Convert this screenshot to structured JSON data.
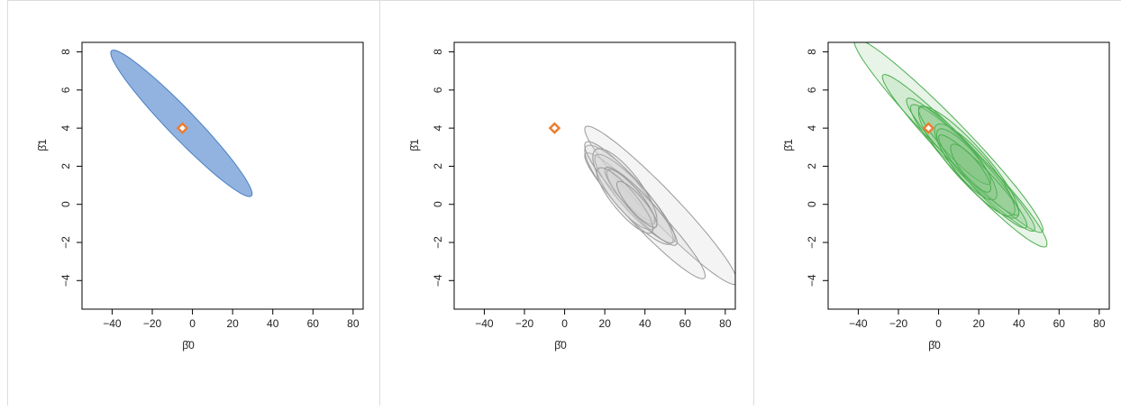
{
  "marker_color": "#ed7d31",
  "chart_data": [
    {
      "type": "scatter",
      "panel": "panel-1",
      "xlabel": "β̂0",
      "ylabel": "β̂1",
      "xlim": [
        -55,
        85
      ],
      "ylim": [
        -5.5,
        8.5
      ],
      "xticks": [
        -40,
        -20,
        0,
        20,
        40,
        60,
        80
      ],
      "yticks": [
        -4,
        -2,
        0,
        2,
        4,
        6,
        8
      ],
      "true_point": {
        "x": -5,
        "y": 4
      },
      "ellipse_color": "#4a7fc1",
      "ellipse_fill": "#7fa6d9",
      "ellipse_fill_opacity": 0.85,
      "ellipses": [
        {
          "cx": -5.5,
          "cy": 4.25,
          "a": 35.2,
          "b": 1.05,
          "angle": -5.54
        }
      ]
    },
    {
      "type": "scatter",
      "panel": "panel-2",
      "xlabel": "β̂0",
      "ylabel": "β̂1",
      "xlim": [
        -55,
        85
      ],
      "ylim": [
        -5.5,
        8.5
      ],
      "xticks": [
        -40,
        -20,
        0,
        20,
        40,
        60,
        80
      ],
      "yticks": [
        -4,
        -2,
        0,
        2,
        4,
        6,
        8
      ],
      "true_point": {
        "x": -5,
        "y": 4
      },
      "ellipse_color": "#999999",
      "ellipse_fill": "#d4d4d4",
      "ellipse_fill_opacity": 0.25,
      "ellipses": [
        {
          "cx": 48,
          "cy": -0.05,
          "a": 38,
          "b": 1.15,
          "angle": -5.2
        },
        {
          "cx": 40,
          "cy": -0.6,
          "a": 30,
          "b": 1.0,
          "angle": -4.9
        },
        {
          "cx": 32,
          "cy": 0.5,
          "a": 22,
          "b": 1.2,
          "angle": -5.0
        },
        {
          "cx": 28,
          "cy": 1.2,
          "a": 18,
          "b": 0.9,
          "angle": -4.5
        },
        {
          "cx": 35,
          "cy": 0.3,
          "a": 20,
          "b": 1.0,
          "angle": -5.5
        },
        {
          "cx": 30,
          "cy": 0.8,
          "a": 16,
          "b": 1.3,
          "angle": -4.7
        },
        {
          "cx": 38,
          "cy": -0.1,
          "a": 18,
          "b": 0.8,
          "angle": -5.3
        },
        {
          "cx": 33,
          "cy": 0.4,
          "a": 12,
          "b": 0.7,
          "angle": -5.0
        },
        {
          "cx": 30,
          "cy": 0.2,
          "a": 14,
          "b": 0.9,
          "angle": -5.6
        },
        {
          "cx": 36,
          "cy": 0.0,
          "a": 10,
          "b": 0.6,
          "angle": -4.8
        }
      ]
    },
    {
      "type": "scatter",
      "panel": "panel-3",
      "xlabel": "β̂0",
      "ylabel": "β̂1",
      "xlim": [
        -55,
        85
      ],
      "ylim": [
        -5.5,
        8.5
      ],
      "xticks": [
        -40,
        -20,
        0,
        20,
        40,
        60,
        80
      ],
      "yticks": [
        -4,
        -2,
        0,
        2,
        4,
        6,
        8
      ],
      "true_point": {
        "x": -5,
        "y": 4
      },
      "ellipse_color": "#4caf50",
      "ellipse_fill": "#7cc47c",
      "ellipse_fill_opacity": 0.18,
      "ellipses": [
        {
          "cx": 5,
          "cy": 3.6,
          "a": 47,
          "b": 1.2,
          "angle": -5.3
        },
        {
          "cx": 10,
          "cy": 2.7,
          "a": 38,
          "b": 1.0,
          "angle": -5.1
        },
        {
          "cx": 20,
          "cy": 1.5,
          "a": 34,
          "b": 1.1,
          "angle": -5.0
        },
        {
          "cx": 15,
          "cy": 2.2,
          "a": 25,
          "b": 1.3,
          "angle": -5.6
        },
        {
          "cx": 12,
          "cy": 2.5,
          "a": 28,
          "b": 0.9,
          "angle": -4.9
        },
        {
          "cx": 18,
          "cy": 1.8,
          "a": 20,
          "b": 1.2,
          "angle": -5.2
        },
        {
          "cx": 8,
          "cy": 3.1,
          "a": 18,
          "b": 0.8,
          "angle": -4.6
        },
        {
          "cx": 14,
          "cy": 2.1,
          "a": 15,
          "b": 1.0,
          "angle": -5.4
        },
        {
          "cx": 22,
          "cy": 1.2,
          "a": 22,
          "b": 0.8,
          "angle": -5.0
        },
        {
          "cx": 16,
          "cy": 1.9,
          "a": 10,
          "b": 0.7,
          "angle": -5.1
        }
      ]
    }
  ]
}
